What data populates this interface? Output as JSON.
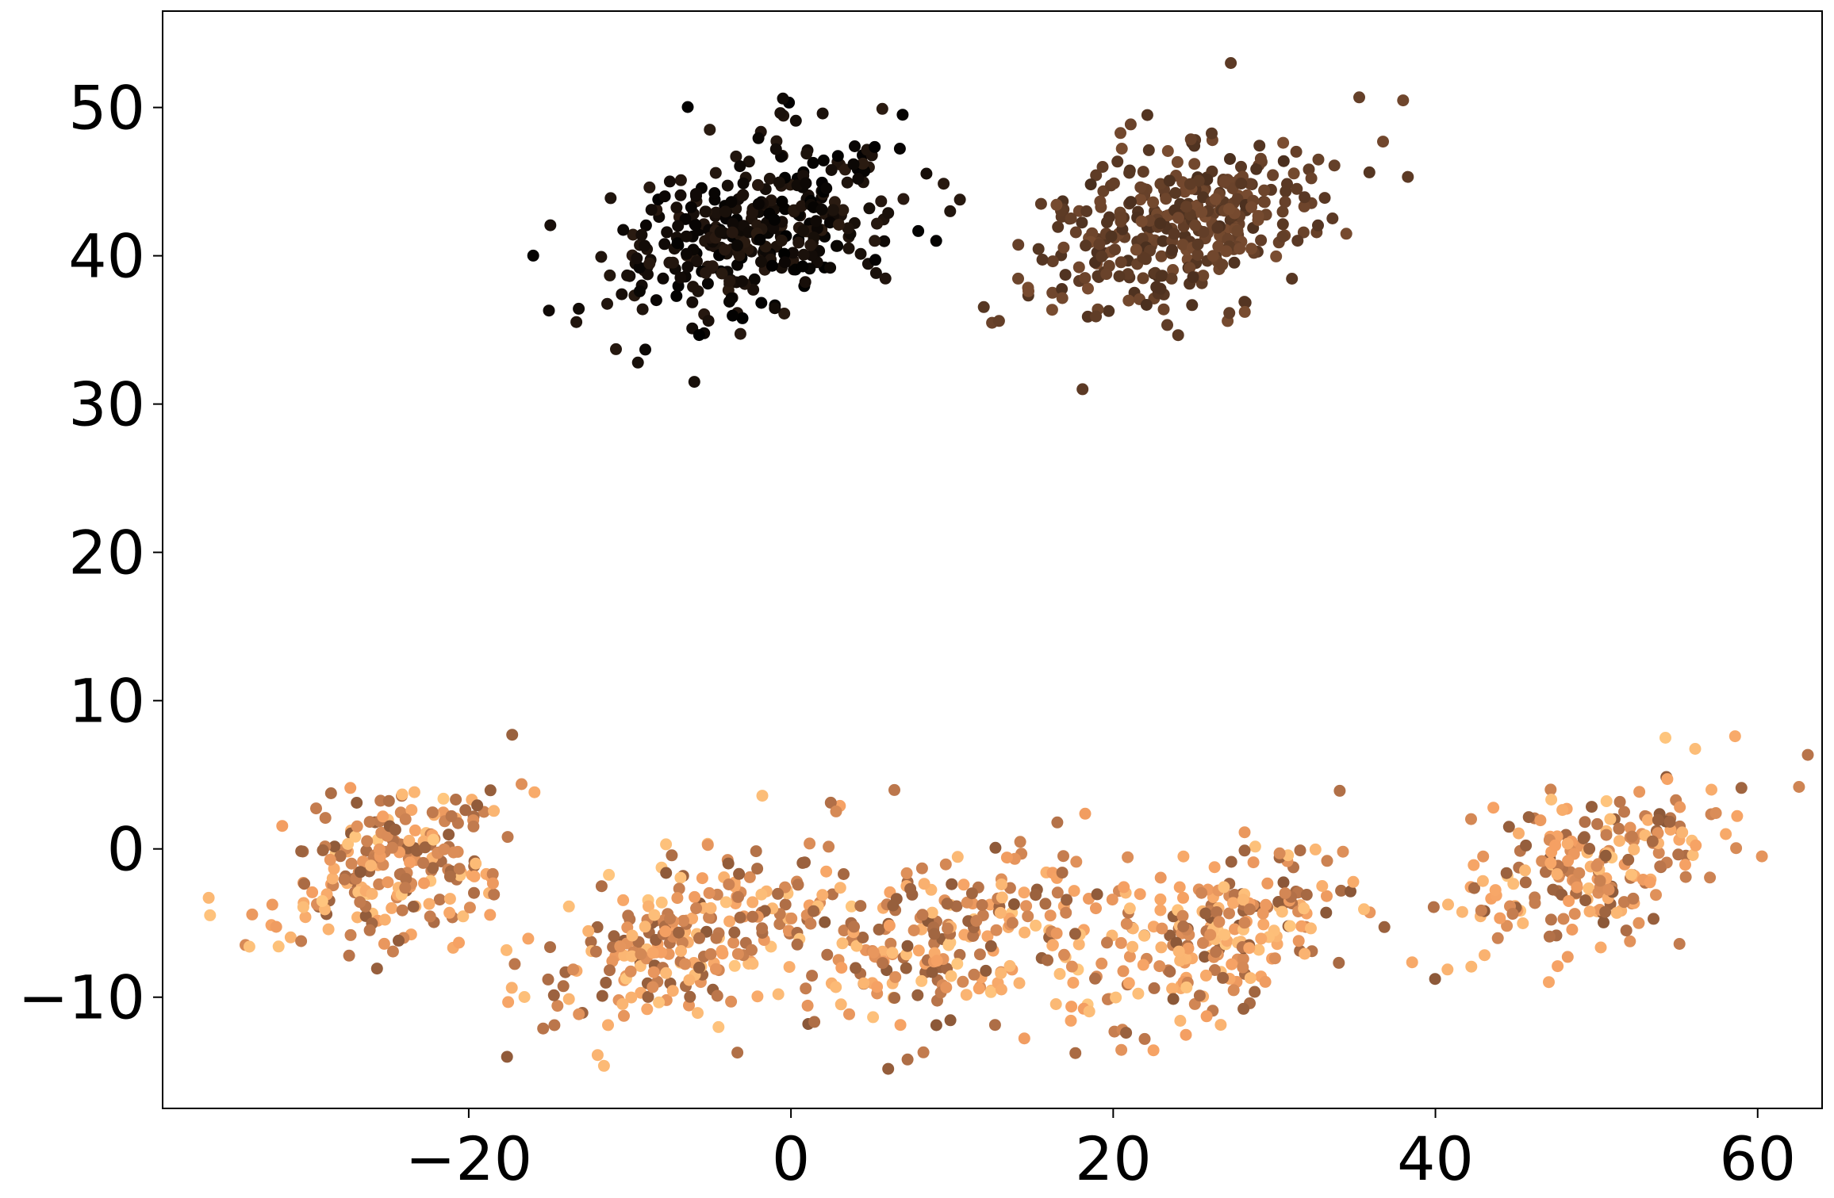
{
  "chart_data": {
    "type": "scatter",
    "title": "",
    "xlabel": "",
    "ylabel": "",
    "xlim": [
      -39,
      64
    ],
    "ylim": [
      -17.5,
      56.5
    ],
    "grid": false,
    "legend": "none",
    "x_ticks": [
      {
        "value": -20,
        "label": "−20"
      },
      {
        "value": 0,
        "label": "0"
      },
      {
        "value": 20,
        "label": "20"
      },
      {
        "value": 40,
        "label": "40"
      },
      {
        "value": 60,
        "label": "60"
      }
    ],
    "y_ticks": [
      {
        "value": -10,
        "label": "−10"
      },
      {
        "value": 0,
        "label": "0"
      },
      {
        "value": 10,
        "label": "10"
      },
      {
        "value": 20,
        "label": "20"
      },
      {
        "value": 30,
        "label": "30"
      },
      {
        "value": 40,
        "label": "40"
      },
      {
        "value": 50,
        "label": "50"
      }
    ],
    "colormap": "copper",
    "colormap_stops": [
      "#000000",
      "#3d2719",
      "#7a4d31",
      "#b8744a",
      "#f5a063",
      "#ffc77f"
    ],
    "clusters": [
      {
        "center": [
          -2,
          42
        ],
        "sd": [
          4.5,
          3.0
        ],
        "rho": 0.45,
        "count": 360,
        "color_range": [
          0.0,
          0.14
        ]
      },
      {
        "center": [
          24,
          42
        ],
        "sd": [
          4.5,
          3.0
        ],
        "rho": 0.45,
        "count": 360,
        "color_range": [
          0.24,
          0.4
        ]
      },
      {
        "center": [
          -25,
          -1
        ],
        "sd": [
          4.0,
          2.8
        ],
        "rho": 0.35,
        "count": 230,
        "color_range": [
          0.45,
          1.0
        ]
      },
      {
        "center": [
          -6,
          -6
        ],
        "sd": [
          5.0,
          3.0
        ],
        "rho": 0.5,
        "count": 250,
        "color_range": [
          0.45,
          1.0
        ]
      },
      {
        "center": [
          10,
          -6
        ],
        "sd": [
          4.5,
          2.8
        ],
        "rho": 0.35,
        "count": 220,
        "color_range": [
          0.45,
          1.0
        ]
      },
      {
        "center": [
          26,
          -6
        ],
        "sd": [
          4.5,
          3.0
        ],
        "rho": 0.5,
        "count": 240,
        "color_range": [
          0.45,
          1.0
        ]
      },
      {
        "center": [
          50,
          -1
        ],
        "sd": [
          4.5,
          3.0
        ],
        "rho": 0.45,
        "count": 220,
        "color_range": [
          0.45,
          1.0
        ]
      }
    ],
    "extra_points": [
      {
        "x": 27.3,
        "y": 53.0,
        "c": 0.3
      },
      {
        "x": 18.1,
        "y": 31.0,
        "c": 0.3
      },
      {
        "x": -6.0,
        "y": 31.5,
        "c": 0.08
      },
      {
        "x": -9.5,
        "y": 32.8,
        "c": 0.08
      },
      {
        "x": -0.5,
        "y": 50.6,
        "c": 0.05
      },
      {
        "x": -17.3,
        "y": 7.7,
        "c": 0.5
      },
      {
        "x": 58.6,
        "y": 7.6,
        "c": 0.85
      },
      {
        "x": -12.0,
        "y": -13.9,
        "c": 0.9
      },
      {
        "x": 20.8,
        "y": -12.4,
        "c": 0.5
      }
    ]
  }
}
